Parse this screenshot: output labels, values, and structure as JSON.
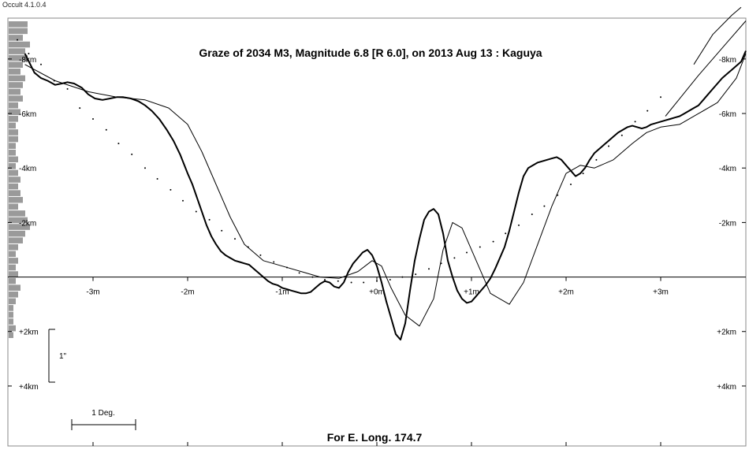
{
  "window": {
    "title": "Occult 4.1.0.4"
  },
  "chart_data": {
    "type": "line",
    "title": "Graze of  2034 M3,  Magnitude 6.8 [R 6.0],  on 2013 Aug 13  :  Kaguya",
    "footer": "For E. Long. 174.7",
    "x_ticks": [
      -3,
      -2,
      -1,
      0,
      1,
      2,
      3
    ],
    "x_tick_labels": [
      "-3m",
      "-2m",
      "-1m",
      "+0m",
      "+1m",
      "+2m",
      "+3m"
    ],
    "y_ticks": [
      -8,
      -6,
      -4,
      -2,
      2,
      4
    ],
    "y_tick_labels": [
      "-8km",
      "-6km",
      "-4km",
      "-2km",
      "+2km",
      "+4km"
    ],
    "xlim": [
      -3.9,
      3.9
    ],
    "ylim": [
      -9.5,
      6.2
    ],
    "scale_bar_vertical_label": "1\"",
    "scale_bar_horizontal_label": "1 Deg.",
    "series": [
      {
        "style": "bold",
        "x": [
          -3.72,
          -3.62,
          -3.55,
          -3.48,
          -3.4,
          -3.33,
          -3.27,
          -3.2,
          -3.12,
          -3.05,
          -2.98,
          -2.9,
          -2.82,
          -2.75,
          -2.68,
          -2.6,
          -2.52,
          -2.45,
          -2.38,
          -2.3,
          -2.22,
          -2.15,
          -2.08,
          -2.0,
          -1.95,
          -1.9,
          -1.85,
          -1.8,
          -1.75,
          -1.7,
          -1.65,
          -1.6,
          -1.55,
          -1.5,
          -1.45,
          -1.4,
          -1.35,
          -1.3,
          -1.25,
          -1.2,
          -1.15,
          -1.1,
          -1.05,
          -1.0,
          -0.95,
          -0.9,
          -0.85,
          -0.8,
          -0.75,
          -0.7,
          -0.65,
          -0.6,
          -0.55,
          -0.5,
          -0.45,
          -0.4,
          -0.35,
          -0.3,
          -0.25,
          -0.2,
          -0.15,
          -0.1,
          -0.05,
          0.0,
          0.05,
          0.1,
          0.15,
          0.2,
          0.25,
          0.3,
          0.35,
          0.4,
          0.45,
          0.5,
          0.55,
          0.6,
          0.65,
          0.7,
          0.75,
          0.8,
          0.85,
          0.9,
          0.95,
          1.0,
          1.05,
          1.1,
          1.15,
          1.2,
          1.25,
          1.3,
          1.35,
          1.4,
          1.45,
          1.5,
          1.55,
          1.6,
          1.65,
          1.7,
          1.75,
          1.8,
          1.85,
          1.9,
          1.95,
          2.0,
          2.05,
          2.1,
          2.15,
          2.2,
          2.25,
          2.3,
          2.35,
          2.4,
          2.45,
          2.5,
          2.55,
          2.6,
          2.65,
          2.7,
          2.75,
          2.8,
          2.85,
          2.9,
          2.95,
          3.0,
          3.05,
          3.1,
          3.15,
          3.2,
          3.25,
          3.3,
          3.35,
          3.4,
          3.45,
          3.5,
          3.55,
          3.6,
          3.65,
          3.7,
          3.75,
          3.8,
          3.85,
          3.9
        ],
        "y": [
          -8.2,
          -7.5,
          -7.3,
          -7.2,
          -7.05,
          -7.1,
          -7.15,
          -7.1,
          -6.95,
          -6.7,
          -6.55,
          -6.5,
          -6.55,
          -6.6,
          -6.6,
          -6.55,
          -6.45,
          -6.3,
          -6.1,
          -5.8,
          -5.4,
          -5.0,
          -4.5,
          -3.8,
          -3.4,
          -2.9,
          -2.4,
          -1.9,
          -1.5,
          -1.2,
          -0.95,
          -0.8,
          -0.7,
          -0.6,
          -0.55,
          -0.5,
          -0.45,
          -0.3,
          -0.15,
          0.0,
          0.15,
          0.25,
          0.3,
          0.4,
          0.45,
          0.5,
          0.55,
          0.6,
          0.6,
          0.55,
          0.4,
          0.25,
          0.15,
          0.2,
          0.35,
          0.4,
          0.2,
          -0.2,
          -0.5,
          -0.7,
          -0.9,
          -1.0,
          -0.8,
          -0.4,
          0.2,
          0.9,
          1.5,
          2.1,
          2.3,
          1.7,
          0.5,
          -0.6,
          -1.4,
          -2.1,
          -2.4,
          -2.5,
          -2.3,
          -1.6,
          -0.6,
          0.0,
          0.5,
          0.8,
          0.95,
          0.9,
          0.7,
          0.5,
          0.3,
          0.05,
          -0.3,
          -0.7,
          -1.1,
          -1.7,
          -2.4,
          -3.1,
          -3.7,
          -4.0,
          -4.1,
          -4.2,
          -4.25,
          -4.3,
          -4.35,
          -4.4,
          -4.3,
          -4.1,
          -3.9,
          -3.7,
          -3.8,
          -4.0,
          -4.3,
          -4.55,
          -4.7,
          -4.85,
          -5.0,
          -5.15,
          -5.3,
          -5.4,
          -5.5,
          -5.55,
          -5.5,
          -5.45,
          -5.5,
          -5.6,
          -5.65,
          -5.7,
          -5.75,
          -5.8,
          -5.85,
          -5.9,
          -6.0,
          -6.1,
          -6.2,
          -6.3,
          -6.5,
          -6.7,
          -6.9,
          -7.1,
          -7.3,
          -7.45,
          -7.6,
          -7.75,
          -7.9,
          -8.3
        ]
      },
      {
        "style": "thin",
        "x": [
          -3.72,
          -3.4,
          -3.05,
          -2.75,
          -2.45,
          -2.2,
          -2.0,
          -1.85,
          -1.7,
          -1.55,
          -1.4,
          -1.2,
          -1.0,
          -0.8,
          -0.6,
          -0.4,
          -0.2,
          -0.05,
          0.05,
          0.15,
          0.3,
          0.45,
          0.6,
          0.7,
          0.8,
          0.9,
          1.05,
          1.2,
          1.4,
          1.55,
          1.7,
          1.85,
          2.0,
          2.15,
          2.3,
          2.5,
          2.7,
          2.85,
          3.0,
          3.2,
          3.4,
          3.6,
          3.8,
          3.9
        ],
        "y": [
          -7.8,
          -7.2,
          -6.8,
          -6.6,
          -6.5,
          -6.2,
          -5.6,
          -4.6,
          -3.4,
          -2.2,
          -1.2,
          -0.6,
          -0.4,
          -0.2,
          0.0,
          0.05,
          -0.2,
          -0.6,
          -0.4,
          0.4,
          1.4,
          1.8,
          0.8,
          -1.0,
          -2.0,
          -1.8,
          -0.6,
          0.6,
          1.0,
          0.2,
          -1.2,
          -2.6,
          -3.8,
          -4.1,
          -4.0,
          -4.3,
          -4.9,
          -5.3,
          -5.5,
          -5.6,
          -6.0,
          -6.4,
          -7.3,
          -8.2
        ]
      }
    ],
    "limb_points": {
      "x": [
        -3.8,
        -3.68,
        -3.55,
        -3.41,
        -3.27,
        -3.14,
        -3.0,
        -2.86,
        -2.73,
        -2.59,
        -2.45,
        -2.32,
        -2.18,
        -2.05,
        -1.91,
        -1.77,
        -1.64,
        -1.5,
        -1.36,
        -1.23,
        -1.09,
        -0.95,
        -0.82,
        -0.68,
        -0.55,
        -0.41,
        -0.27,
        -0.14,
        0.0,
        0.14,
        0.27,
        0.41,
        0.55,
        0.68,
        0.82,
        0.95,
        1.09,
        1.23,
        1.36,
        1.5,
        1.64,
        1.77,
        1.91,
        2.05,
        2.18,
        2.32,
        2.45,
        2.59,
        2.73,
        2.86,
        3.0
      ],
      "y": [
        -8.7,
        -8.2,
        -7.8,
        -7.2,
        -6.9,
        -6.2,
        -5.8,
        -5.4,
        -4.9,
        -4.5,
        -4.0,
        -3.6,
        -3.2,
        -2.8,
        -2.4,
        -2.1,
        -1.7,
        -1.4,
        -1.1,
        -0.8,
        -0.55,
        -0.35,
        -0.15,
        0.0,
        0.1,
        0.15,
        0.2,
        0.2,
        0.15,
        0.1,
        0.0,
        -0.1,
        -0.3,
        -0.5,
        -0.7,
        -0.9,
        -1.1,
        -1.3,
        -1.6,
        -1.9,
        -2.3,
        -2.6,
        -3.0,
        -3.4,
        -3.8,
        -4.3,
        -4.8,
        -5.2,
        -5.7,
        -6.1,
        -6.6
      ]
    },
    "limb_curves": [
      {
        "x": [
          3.05,
          3.4,
          3.7,
          3.9
        ],
        "y": [
          -5.9,
          -7.4,
          -8.6,
          -9.4
        ]
      },
      {
        "x": [
          3.35,
          3.55,
          3.75,
          3.85
        ],
        "y": [
          -7.8,
          -8.9,
          -9.6,
          -9.9
        ]
      }
    ],
    "histogram_counts": [
      8,
      8,
      6,
      9,
      7,
      8,
      6,
      5,
      7,
      6,
      5,
      6,
      4,
      5,
      4,
      3,
      4,
      4,
      3,
      3,
      4,
      3,
      4,
      5,
      4,
      5,
      6,
      4,
      7,
      8,
      9,
      7,
      6,
      4,
      3,
      4,
      3,
      4,
      3,
      5,
      4,
      3,
      2,
      2,
      2,
      3,
      2
    ]
  }
}
